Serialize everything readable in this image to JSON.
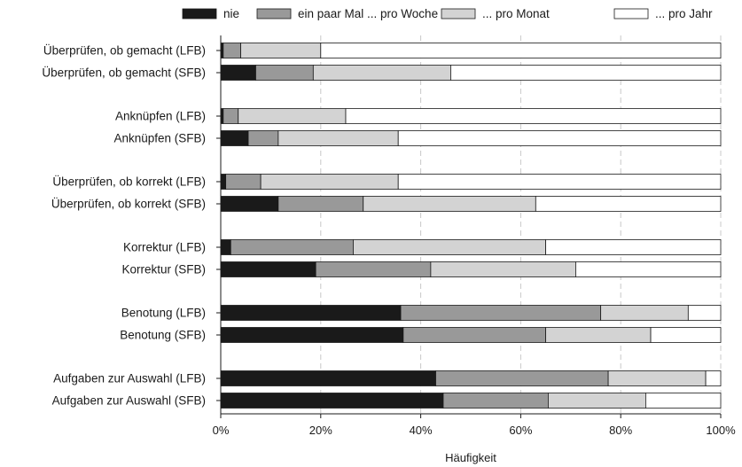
{
  "chart_data": {
    "type": "bar",
    "orientation": "horizontal",
    "stacked": true,
    "percent": true,
    "xlabel": "Häufigkeit",
    "ylabel": "",
    "xlim": [
      0,
      100
    ],
    "xticks": [
      "0%",
      "20%",
      "40%",
      "60%",
      "80%",
      "100%"
    ],
    "grid": "vertical dashed",
    "legend_position": "top",
    "categories": [
      "Überprüfen, ob gemacht (LFB)",
      "Überprüfen, ob gemacht (SFB)",
      "Anknüpfen (LFB)",
      "Anknüpfen (SFB)",
      "Überprüfen, ob korrekt (LFB)",
      "Überprüfen, ob korrekt (SFB)",
      "Korrektur (LFB)",
      "Korrektur (SFB)",
      "Benotung (LFB)",
      "Benotung (SFB)",
      "Aufgaben zur Auswahl (LFB)",
      "Aufgaben zur Auswahl (SFB)"
    ],
    "series": [
      {
        "name": "nie",
        "color": "#1a1a1a",
        "values": [
          0.5,
          7,
          0.5,
          5.5,
          1,
          11.5,
          2,
          19,
          36,
          36.5,
          43,
          44.5
        ]
      },
      {
        "name": "ein paar Mal ... pro Woche",
        "color": "#999999",
        "values": [
          3.5,
          11.5,
          3,
          6,
          7,
          17,
          24.5,
          23,
          40,
          28.5,
          34.5,
          21
        ]
      },
      {
        "name": "... pro Monat",
        "color": "#d3d3d3",
        "values": [
          16,
          27.5,
          21.5,
          24,
          27.5,
          34.5,
          38.5,
          29,
          17.5,
          21,
          19.5,
          19.5
        ]
      },
      {
        "name": "... pro Jahr",
        "color": "#ffffff",
        "values": [
          80,
          54,
          75,
          64.5,
          64.5,
          37,
          35,
          29,
          6.5,
          14,
          3,
          15
        ]
      }
    ]
  }
}
